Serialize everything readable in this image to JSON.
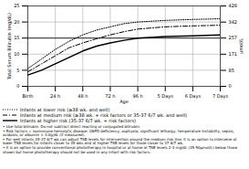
{
  "chart_data": {
    "type": "line",
    "xlabel": "Age",
    "ylabel": "Total Serum Bilirubin (mg/dL)",
    "y2label": "μmol/L",
    "x": [
      0,
      12,
      24,
      36,
      48,
      60,
      72,
      84,
      96,
      120,
      144,
      168
    ],
    "series": [
      {
        "name": "Infants at lower risk (≥38 wk. and well)",
        "color": "black",
        "line_style": "dotted",
        "values": [
          5.5,
          8.5,
          11.5,
          14.0,
          16.0,
          17.5,
          18.5,
          19.5,
          20.0,
          20.5,
          20.8,
          21.0
        ]
      },
      {
        "name": "Infants at medium risk (≥38 wk. + risk factors or 35-37 6/7 wk. and well)",
        "color": "black",
        "line_style": "dashdot",
        "values": [
          4.5,
          7.0,
          9.5,
          12.0,
          13.5,
          14.8,
          16.0,
          17.0,
          17.8,
          18.5,
          18.8,
          19.0
        ]
      },
      {
        "name": "Infants at higher risk (35-37 6/7 wk. + risk factors)",
        "color": "black",
        "line_style": "solid",
        "values": [
          3.5,
          5.0,
          7.0,
          9.0,
          11.0,
          12.5,
          13.5,
          14.3,
          15.0,
          15.5,
          15.7,
          16.0
        ]
      }
    ],
    "xlim": [
      0,
      168
    ],
    "xticks": [
      {
        "value": 0,
        "label": "Birth"
      },
      {
        "value": 24,
        "label": "24 h"
      },
      {
        "value": 48,
        "label": "48 h"
      },
      {
        "value": 72,
        "label": "72 h"
      },
      {
        "value": 96,
        "label": "96 h"
      },
      {
        "value": 120,
        "label": "5 Days"
      },
      {
        "value": 144,
        "label": "6 Days"
      },
      {
        "value": 168,
        "label": "7 Days"
      }
    ],
    "ylim": [
      0,
      25
    ],
    "yticks": [
      0,
      5,
      10,
      15,
      20,
      25
    ],
    "y2lim": [
      0,
      428
    ],
    "y2ticks": [
      0,
      85,
      171,
      257,
      342,
      428
    ],
    "hline": 15,
    "grid": true,
    "legend": "bottom",
    "footnotes": "• Use total bilirubin. Do not subtract direct reacting or conjugated bilirubin.\n• Risk factors = isoimmune hemolytic disease, G6PD deficiency, asphyxia, significant lethargy, temperature instability, sepsis, acidosis, or albumin < 3.0g/dL (if measured).\n• For well infants 35-37 6/7 wk can adjust TSB levels for intervention around the medium risk line. It is an option to intervene at lower TSB levels for infants closer to 35 wks and at higher TSB levels for those closer to 37 6/7 wk.\n• It is an option to provide conventional phototherapy in hospital or at home at TSB levels 2-3 mg/dL (35-50μmol/L) below those shown but home phototherapy should not be used in any infant with risk factors."
  }
}
